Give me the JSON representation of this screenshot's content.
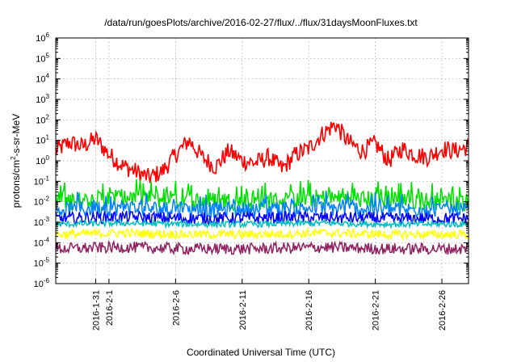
{
  "chart_data": {
    "type": "line",
    "title": "/data/run/goesPlots/archive/2016-02-27/flux/../flux/31daysMoonFluxes.txt",
    "xlabel": "Coordinated Universal Time (UTC)",
    "ylabel_prefix": "protons/cm",
    "ylabel_sup": "2",
    "ylabel_suffix": "-s-sr-MeV",
    "yscale": "log",
    "ylim": [
      1e-06,
      1000000.0
    ],
    "y_ticks": [
      {
        "base": "10",
        "exp": "-6",
        "value": -6
      },
      {
        "base": "10",
        "exp": "-5",
        "value": -5
      },
      {
        "base": "10",
        "exp": "-4",
        "value": -4
      },
      {
        "base": "10",
        "exp": "-3",
        "value": -3
      },
      {
        "base": "10",
        "exp": "-2",
        "value": -2
      },
      {
        "base": "10",
        "exp": "-1",
        "value": -1
      },
      {
        "base": "10",
        "exp": "0",
        "value": 0
      },
      {
        "base": "10",
        "exp": "1",
        "value": 1
      },
      {
        "base": "10",
        "exp": "2",
        "value": 2
      },
      {
        "base": "10",
        "exp": "3",
        "value": 3
      },
      {
        "base": "10",
        "exp": "4",
        "value": 4
      },
      {
        "base": "10",
        "exp": "5",
        "value": 5
      },
      {
        "base": "10",
        "exp": "6",
        "value": 6
      }
    ],
    "xlim": [
      "2016-01-28",
      "2016-02-28"
    ],
    "x_ticks": [
      {
        "label": "2016-1-31",
        "date": "2016-01-31"
      },
      {
        "label": "2016-2-1",
        "date": "2016-02-01"
      },
      {
        "label": "2016-2-6",
        "date": "2016-02-06"
      },
      {
        "label": "2016-2-11",
        "date": "2016-02-11"
      },
      {
        "label": "2016-2-16",
        "date": "2016-02-16"
      },
      {
        "label": "2016-2-21",
        "date": "2016-02-21"
      },
      {
        "label": "2016-2-26",
        "date": "2016-02-26"
      }
    ],
    "grid": true,
    "series": [
      {
        "color": "#ff0000",
        "dates": [
          "2016-01-28",
          "2016-01-29",
          "2016-01-30",
          "2016-01-31",
          "2016-02-01",
          "2016-02-02",
          "2016-02-03",
          "2016-02-04",
          "2016-02-05",
          "2016-02-06",
          "2016-02-07",
          "2016-02-08",
          "2016-02-09",
          "2016-02-10",
          "2016-02-11",
          "2016-02-12",
          "2016-02-13",
          "2016-02-14",
          "2016-02-15",
          "2016-02-16",
          "2016-02-17",
          "2016-02-18",
          "2016-02-19",
          "2016-02-20",
          "2016-02-21",
          "2016-02-22",
          "2016-02-23",
          "2016-02-24",
          "2016-02-25",
          "2016-02-26",
          "2016-02-27",
          "2016-02-28"
        ],
        "values": [
          3,
          8,
          5,
          12,
          2,
          0.6,
          0.3,
          0.15,
          0.3,
          2,
          10,
          1.5,
          0.5,
          3,
          1,
          0.8,
          1.5,
          0.4,
          2,
          4,
          20,
          60,
          8,
          3,
          7,
          1,
          4,
          2,
          1.5,
          4,
          3,
          5
        ]
      },
      {
        "color": "#00e000",
        "dates": [
          "2016-01-28",
          "2016-02-02",
          "2016-02-07",
          "2016-02-12",
          "2016-02-17",
          "2016-02-22",
          "2016-02-28"
        ],
        "values": [
          0.01,
          0.015,
          0.012,
          0.01,
          0.015,
          0.012,
          0.01
        ]
      },
      {
        "color": "#0080ff",
        "dates": [
          "2016-01-28",
          "2016-02-02",
          "2016-02-07",
          "2016-02-12",
          "2016-02-17",
          "2016-02-22",
          "2016-02-28"
        ],
        "values": [
          0.004,
          0.005,
          0.004,
          0.004,
          0.005,
          0.004,
          0.004
        ]
      },
      {
        "color": "#0000ff",
        "dates": [
          "2016-01-28",
          "2016-02-02",
          "2016-02-07",
          "2016-02-12",
          "2016-02-17",
          "2016-02-22",
          "2016-02-28"
        ],
        "values": [
          0.0015,
          0.0018,
          0.0015,
          0.0016,
          0.0017,
          0.0015,
          0.0015
        ]
      },
      {
        "color": "#00c0c0",
        "dates": [
          "2016-01-28",
          "2016-02-02",
          "2016-02-07",
          "2016-02-12",
          "2016-02-17",
          "2016-02-22",
          "2016-02-28"
        ],
        "values": [
          0.0008,
          0.0009,
          0.0008,
          0.0008,
          0.0009,
          0.0008,
          0.0008
        ]
      },
      {
        "color": "#ffff00",
        "dates": [
          "2016-01-28",
          "2016-02-02",
          "2016-02-07",
          "2016-02-12",
          "2016-02-17",
          "2016-02-22",
          "2016-02-28"
        ],
        "values": [
          0.00025,
          0.0003,
          0.00025,
          0.00025,
          0.0003,
          0.00025,
          0.00025
        ]
      },
      {
        "color": "#902060",
        "dates": [
          "2016-01-28",
          "2016-02-02",
          "2016-02-07",
          "2016-02-12",
          "2016-02-17",
          "2016-02-22",
          "2016-02-28"
        ],
        "values": [
          5e-05,
          6e-05,
          5e-05,
          5e-05,
          6e-05,
          5e-05,
          5e-05
        ]
      }
    ]
  }
}
